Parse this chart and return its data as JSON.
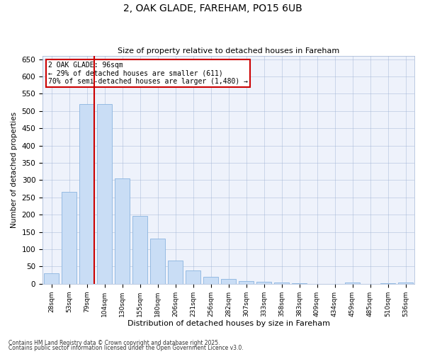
{
  "title1": "2, OAK GLADE, FAREHAM, PO15 6UB",
  "title2": "Size of property relative to detached houses in Fareham",
  "xlabel": "Distribution of detached houses by size in Fareham",
  "ylabel": "Number of detached properties",
  "categories": [
    "28sqm",
    "53sqm",
    "79sqm",
    "104sqm",
    "130sqm",
    "155sqm",
    "180sqm",
    "206sqm",
    "231sqm",
    "256sqm",
    "282sqm",
    "307sqm",
    "333sqm",
    "358sqm",
    "383sqm",
    "409sqm",
    "434sqm",
    "459sqm",
    "485sqm",
    "510sqm",
    "536sqm"
  ],
  "values": [
    30,
    265,
    520,
    520,
    305,
    197,
    130,
    67,
    38,
    20,
    15,
    8,
    5,
    3,
    2,
    0,
    0,
    3,
    0,
    1,
    3
  ],
  "bar_color": "#c9ddf5",
  "bar_edge_color": "#8ab4e0",
  "annotation_title": "2 OAK GLADE: 96sqm",
  "annotation_line1": "← 29% of detached houses are smaller (611)",
  "annotation_line2": "70% of semi-detached houses are larger (1,480) →",
  "annotation_box_color": "#ffffff",
  "annotation_box_edgecolor": "#cc0000",
  "redline_color": "#cc0000",
  "redline_index": 2,
  "ylim": [
    0,
    660
  ],
  "yticks": [
    0,
    50,
    100,
    150,
    200,
    250,
    300,
    350,
    400,
    450,
    500,
    550,
    600,
    650
  ],
  "footer1": "Contains HM Land Registry data © Crown copyright and database right 2025.",
  "footer2": "Contains public sector information licensed under the Open Government Licence v3.0.",
  "bg_color": "#ffffff",
  "plot_bg_color": "#eef2fb"
}
